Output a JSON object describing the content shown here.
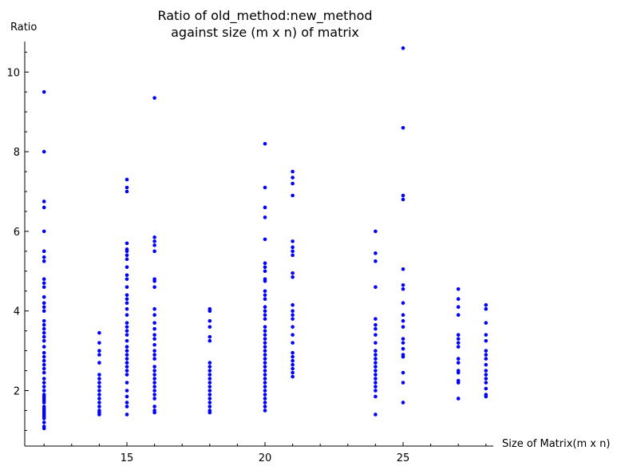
{
  "chart_data": {
    "type": "scatter",
    "title_line1": "Ratio of old_method:new_method",
    "title_line2": "against size (m x n) of matrix",
    "xlabel": "Size of Matrix(m x n)",
    "ylabel": "Ratio",
    "xlim": [
      11.7,
      28.4
    ],
    "ylim": [
      0.9,
      10.8
    ],
    "x_ticks": [
      15,
      20,
      25
    ],
    "y_ticks": [
      2,
      4,
      6,
      8,
      10
    ],
    "grid": false,
    "legend": "none",
    "marker_color": "#0000ff",
    "series": [
      {
        "points": [
          [
            12,
            9.5
          ],
          [
            12,
            8.0
          ],
          [
            12,
            6.75
          ],
          [
            12,
            6.6
          ],
          [
            12,
            6.0
          ],
          [
            12,
            5.5
          ],
          [
            12,
            5.35
          ],
          [
            12,
            5.25
          ],
          [
            12,
            4.8
          ],
          [
            12,
            4.7
          ],
          [
            12,
            4.6
          ],
          [
            12,
            4.35
          ],
          [
            12,
            4.2
          ],
          [
            12,
            4.1
          ],
          [
            12,
            4.0
          ],
          [
            12,
            3.75
          ],
          [
            12,
            3.65
          ],
          [
            12,
            3.55
          ],
          [
            12,
            3.45
          ],
          [
            12,
            3.35
          ],
          [
            12,
            3.25
          ],
          [
            12,
            3.1
          ],
          [
            12,
            2.95
          ],
          [
            12,
            2.85
          ],
          [
            12,
            2.75
          ],
          [
            12,
            2.65
          ],
          [
            12,
            2.55
          ],
          [
            12,
            2.45
          ],
          [
            12,
            2.3
          ],
          [
            12,
            2.2
          ],
          [
            12,
            2.1
          ],
          [
            12,
            2.0
          ],
          [
            12,
            1.9
          ],
          [
            12,
            1.85
          ],
          [
            12,
            1.8
          ],
          [
            12,
            1.75
          ],
          [
            12,
            1.7
          ],
          [
            12,
            1.6
          ],
          [
            12,
            1.55
          ],
          [
            12,
            1.5
          ],
          [
            12,
            1.45
          ],
          [
            12,
            1.4
          ],
          [
            12,
            1.35
          ],
          [
            12,
            1.3
          ],
          [
            12,
            1.2
          ],
          [
            12,
            1.1
          ],
          [
            12,
            1.05
          ],
          [
            14,
            3.45
          ],
          [
            14,
            3.2
          ],
          [
            14,
            3.0
          ],
          [
            14,
            2.9
          ],
          [
            14,
            2.7
          ],
          [
            14,
            2.4
          ],
          [
            14,
            2.3
          ],
          [
            14,
            2.2
          ],
          [
            14,
            2.1
          ],
          [
            14,
            2.0
          ],
          [
            14,
            1.9
          ],
          [
            14,
            1.8
          ],
          [
            14,
            1.7
          ],
          [
            14,
            1.6
          ],
          [
            14,
            1.5
          ],
          [
            14,
            1.45
          ],
          [
            14,
            1.4
          ],
          [
            15,
            7.3
          ],
          [
            15,
            7.1
          ],
          [
            15,
            7.0
          ],
          [
            15,
            5.7
          ],
          [
            15,
            5.55
          ],
          [
            15,
            5.5
          ],
          [
            15,
            5.4
          ],
          [
            15,
            5.3
          ],
          [
            15,
            5.1
          ],
          [
            15,
            4.9
          ],
          [
            15,
            4.8
          ],
          [
            15,
            4.6
          ],
          [
            15,
            4.4
          ],
          [
            15,
            4.3
          ],
          [
            15,
            4.2
          ],
          [
            15,
            4.05
          ],
          [
            15,
            3.9
          ],
          [
            15,
            3.7
          ],
          [
            15,
            3.6
          ],
          [
            15,
            3.5
          ],
          [
            15,
            3.4
          ],
          [
            15,
            3.25
          ],
          [
            15,
            3.1
          ],
          [
            15,
            3.0
          ],
          [
            15,
            2.9
          ],
          [
            15,
            2.8
          ],
          [
            15,
            2.7
          ],
          [
            15,
            2.6
          ],
          [
            15,
            2.5
          ],
          [
            15,
            2.4
          ],
          [
            15,
            2.2
          ],
          [
            15,
            2.0
          ],
          [
            15,
            1.85
          ],
          [
            15,
            1.7
          ],
          [
            15,
            1.6
          ],
          [
            15,
            1.4
          ],
          [
            16,
            9.35
          ],
          [
            16,
            5.85
          ],
          [
            16,
            5.75
          ],
          [
            16,
            5.65
          ],
          [
            16,
            5.5
          ],
          [
            16,
            4.8
          ],
          [
            16,
            4.75
          ],
          [
            16,
            4.6
          ],
          [
            16,
            4.05
          ],
          [
            16,
            3.9
          ],
          [
            16,
            3.7
          ],
          [
            16,
            3.55
          ],
          [
            16,
            3.4
          ],
          [
            16,
            3.3
          ],
          [
            16,
            3.15
          ],
          [
            16,
            3.0
          ],
          [
            16,
            2.9
          ],
          [
            16,
            2.8
          ],
          [
            16,
            2.6
          ],
          [
            16,
            2.5
          ],
          [
            16,
            2.4
          ],
          [
            16,
            2.3
          ],
          [
            16,
            2.2
          ],
          [
            16,
            2.1
          ],
          [
            16,
            2.0
          ],
          [
            16,
            1.9
          ],
          [
            16,
            1.8
          ],
          [
            16,
            1.6
          ],
          [
            16,
            1.5
          ],
          [
            16,
            1.45
          ],
          [
            18,
            4.05
          ],
          [
            18,
            4.0
          ],
          [
            18,
            3.75
          ],
          [
            18,
            3.6
          ],
          [
            18,
            3.35
          ],
          [
            18,
            3.25
          ],
          [
            18,
            2.7
          ],
          [
            18,
            2.6
          ],
          [
            18,
            2.5
          ],
          [
            18,
            2.4
          ],
          [
            18,
            2.3
          ],
          [
            18,
            2.2
          ],
          [
            18,
            2.1
          ],
          [
            18,
            2.0
          ],
          [
            18,
            1.9
          ],
          [
            18,
            1.8
          ],
          [
            18,
            1.7
          ],
          [
            18,
            1.6
          ],
          [
            18,
            1.5
          ],
          [
            18,
            1.45
          ],
          [
            20,
            8.2
          ],
          [
            20,
            7.1
          ],
          [
            20,
            6.6
          ],
          [
            20,
            6.35
          ],
          [
            20,
            5.8
          ],
          [
            20,
            5.2
          ],
          [
            20,
            5.1
          ],
          [
            20,
            5.0
          ],
          [
            20,
            4.8
          ],
          [
            20,
            4.75
          ],
          [
            20,
            4.5
          ],
          [
            20,
            4.4
          ],
          [
            20,
            4.3
          ],
          [
            20,
            4.1
          ],
          [
            20,
            4.0
          ],
          [
            20,
            3.9
          ],
          [
            20,
            3.8
          ],
          [
            20,
            3.6
          ],
          [
            20,
            3.5
          ],
          [
            20,
            3.4
          ],
          [
            20,
            3.3
          ],
          [
            20,
            3.2
          ],
          [
            20,
            3.1
          ],
          [
            20,
            3.0
          ],
          [
            20,
            2.9
          ],
          [
            20,
            2.8
          ],
          [
            20,
            2.7
          ],
          [
            20,
            2.6
          ],
          [
            20,
            2.5
          ],
          [
            20,
            2.4
          ],
          [
            20,
            2.3
          ],
          [
            20,
            2.2
          ],
          [
            20,
            2.1
          ],
          [
            20,
            2.0
          ],
          [
            20,
            1.9
          ],
          [
            20,
            1.8
          ],
          [
            20,
            1.7
          ],
          [
            20,
            1.6
          ],
          [
            20,
            1.5
          ],
          [
            21,
            7.5
          ],
          [
            21,
            7.35
          ],
          [
            21,
            7.2
          ],
          [
            21,
            6.9
          ],
          [
            21,
            5.75
          ],
          [
            21,
            5.6
          ],
          [
            21,
            5.5
          ],
          [
            21,
            5.4
          ],
          [
            21,
            4.95
          ],
          [
            21,
            4.85
          ],
          [
            21,
            4.15
          ],
          [
            21,
            4.0
          ],
          [
            21,
            3.9
          ],
          [
            21,
            3.8
          ],
          [
            21,
            3.6
          ],
          [
            21,
            3.4
          ],
          [
            21,
            3.2
          ],
          [
            21,
            2.95
          ],
          [
            21,
            2.85
          ],
          [
            21,
            2.75
          ],
          [
            21,
            2.65
          ],
          [
            21,
            2.55
          ],
          [
            21,
            2.45
          ],
          [
            21,
            2.35
          ],
          [
            24,
            6.0
          ],
          [
            24,
            5.45
          ],
          [
            24,
            5.25
          ],
          [
            24,
            4.6
          ],
          [
            24,
            3.8
          ],
          [
            24,
            3.65
          ],
          [
            24,
            3.55
          ],
          [
            24,
            3.4
          ],
          [
            24,
            3.2
          ],
          [
            24,
            3.0
          ],
          [
            24,
            2.9
          ],
          [
            24,
            2.8
          ],
          [
            24,
            2.7
          ],
          [
            24,
            2.6
          ],
          [
            24,
            2.5
          ],
          [
            24,
            2.4
          ],
          [
            24,
            2.3
          ],
          [
            24,
            2.2
          ],
          [
            24,
            2.1
          ],
          [
            24,
            2.0
          ],
          [
            24,
            1.85
          ],
          [
            24,
            1.4
          ],
          [
            25,
            10.6
          ],
          [
            25,
            8.6
          ],
          [
            25,
            6.9
          ],
          [
            25,
            6.8
          ],
          [
            25,
            5.05
          ],
          [
            25,
            4.65
          ],
          [
            25,
            4.55
          ],
          [
            25,
            4.2
          ],
          [
            25,
            3.9
          ],
          [
            25,
            3.75
          ],
          [
            25,
            3.6
          ],
          [
            25,
            3.3
          ],
          [
            25,
            3.2
          ],
          [
            25,
            3.05
          ],
          [
            25,
            2.9
          ],
          [
            25,
            2.85
          ],
          [
            25,
            2.45
          ],
          [
            25,
            2.2
          ],
          [
            25,
            1.7
          ],
          [
            27,
            4.55
          ],
          [
            27,
            4.3
          ],
          [
            27,
            4.1
          ],
          [
            27,
            3.9
          ],
          [
            27,
            3.4
          ],
          [
            27,
            3.3
          ],
          [
            27,
            3.2
          ],
          [
            27,
            3.1
          ],
          [
            27,
            2.8
          ],
          [
            27,
            2.7
          ],
          [
            27,
            2.5
          ],
          [
            27,
            2.45
          ],
          [
            27,
            2.25
          ],
          [
            27,
            2.2
          ],
          [
            27,
            1.8
          ],
          [
            28,
            4.15
          ],
          [
            28,
            4.05
          ],
          [
            28,
            3.7
          ],
          [
            28,
            3.4
          ],
          [
            28,
            3.25
          ],
          [
            28,
            3.0
          ],
          [
            28,
            2.9
          ],
          [
            28,
            2.8
          ],
          [
            28,
            2.65
          ],
          [
            28,
            2.5
          ],
          [
            28,
            2.4
          ],
          [
            28,
            2.3
          ],
          [
            28,
            2.2
          ],
          [
            28,
            2.05
          ],
          [
            28,
            1.9
          ],
          [
            28,
            1.85
          ]
        ]
      }
    ]
  }
}
